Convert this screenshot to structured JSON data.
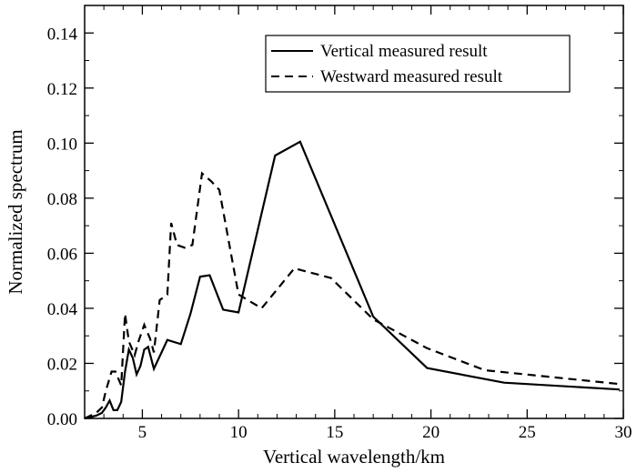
{
  "chart_data": {
    "type": "line",
    "title": "",
    "xlabel": "Vertical wavelength/km",
    "ylabel": "Normalized spectrum",
    "xlim": [
      2,
      30
    ],
    "ylim": [
      0,
      0.15
    ],
    "x_ticks": [
      5,
      10,
      15,
      20,
      25,
      30
    ],
    "x_tick_labels": [
      "5",
      "10",
      "15",
      "20",
      "25",
      "30"
    ],
    "y_ticks": [
      0,
      0.02,
      0.04,
      0.06,
      0.08,
      0.1,
      0.12,
      0.14
    ],
    "y_tick_labels": [
      "0.00",
      "0.02",
      "0.04",
      "0.06",
      "0.08",
      "0.10",
      "0.12",
      "0.14"
    ],
    "grid": false,
    "legend_position": "top-right",
    "series": [
      {
        "name": "Vertical measured result",
        "style": "solid",
        "color": "#000000",
        "x": [
          2.0,
          2.3,
          2.6,
          2.9,
          3.1,
          3.3,
          3.5,
          3.7,
          3.9,
          4.1,
          4.3,
          4.5,
          4.7,
          4.9,
          5.1,
          5.3,
          5.6,
          6.3,
          7.0,
          7.5,
          8.0,
          8.5,
          9.2,
          10.0,
          11.9,
          13.2,
          17.0,
          19.8,
          23.8,
          29.8
        ],
        "y": [
          0.0,
          0.0005,
          0.001,
          0.002,
          0.004,
          0.0065,
          0.003,
          0.003,
          0.006,
          0.017,
          0.025,
          0.022,
          0.016,
          0.019,
          0.025,
          0.026,
          0.018,
          0.0285,
          0.027,
          0.038,
          0.0515,
          0.052,
          0.0395,
          0.0385,
          0.0955,
          0.1005,
          0.037,
          0.0183,
          0.013,
          0.0105
        ]
      },
      {
        "name": "Westward measured result",
        "style": "dashed",
        "color": "#000000",
        "x": [
          2.0,
          2.3,
          2.6,
          2.9,
          3.1,
          3.4,
          3.6,
          3.9,
          4.1,
          4.3,
          4.6,
          4.8,
          5.1,
          5.4,
          5.6,
          5.9,
          6.3,
          6.5,
          6.8,
          7.2,
          7.6,
          8.1,
          8.6,
          9.0,
          10.0,
          11.2,
          12.9,
          14.8,
          17.0,
          19.8,
          22.8,
          29.8
        ],
        "y": [
          0.0,
          0.001,
          0.002,
          0.004,
          0.01,
          0.017,
          0.017,
          0.012,
          0.038,
          0.028,
          0.023,
          0.028,
          0.034,
          0.029,
          0.024,
          0.043,
          0.045,
          0.071,
          0.063,
          0.062,
          0.063,
          0.089,
          0.086,
          0.083,
          0.045,
          0.04,
          0.0545,
          0.051,
          0.036,
          0.0255,
          0.0175,
          0.0125
        ]
      }
    ]
  }
}
